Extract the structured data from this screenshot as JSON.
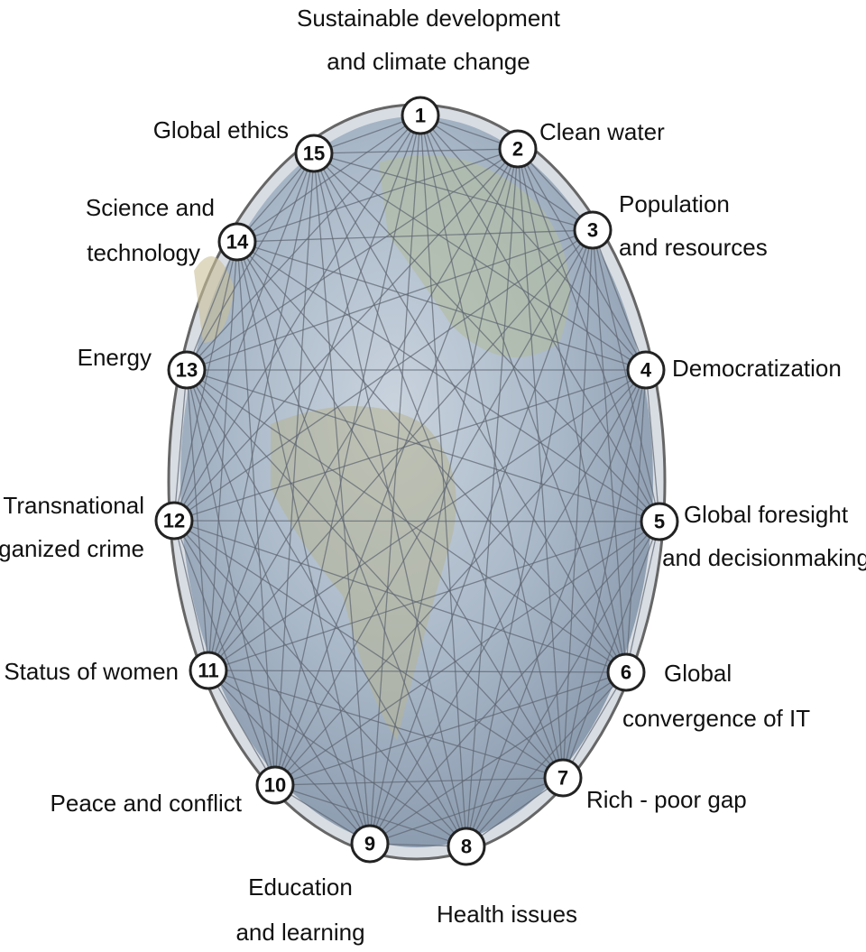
{
  "nodes": [
    {
      "number": 1,
      "label": [
        "Sustainable development",
        "and climate change"
      ]
    },
    {
      "number": 2,
      "label": [
        "Clean water"
      ]
    },
    {
      "number": 3,
      "label": [
        "Population",
        "and resources"
      ]
    },
    {
      "number": 4,
      "label": [
        "Democratization"
      ]
    },
    {
      "number": 5,
      "label": [
        "Global foresight",
        "and decisionmaking"
      ]
    },
    {
      "number": 6,
      "label": [
        "Global",
        "convergence of IT"
      ]
    },
    {
      "number": 7,
      "label": [
        "Rich - poor gap"
      ]
    },
    {
      "number": 8,
      "label": [
        "Health issues"
      ]
    },
    {
      "number": 9,
      "label": [
        "Education",
        "and learning"
      ]
    },
    {
      "number": 10,
      "label": [
        "Peace and conflict"
      ]
    },
    {
      "number": 11,
      "label": [
        "Status of women"
      ]
    },
    {
      "number": 12,
      "label": [
        "Transnational",
        "organized crime"
      ]
    },
    {
      "number": 13,
      "label": [
        "Energy"
      ]
    },
    {
      "number": 14,
      "label": [
        "Science and",
        "technology"
      ]
    },
    {
      "number": 15,
      "label": [
        "Global ethics"
      ]
    }
  ]
}
